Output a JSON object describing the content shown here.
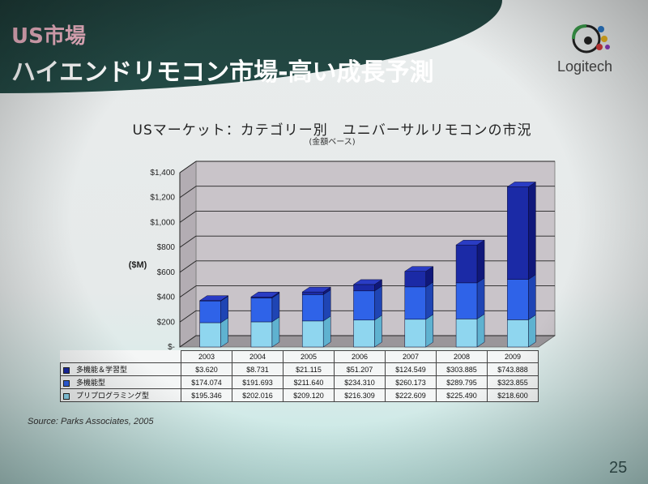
{
  "slide": {
    "title_line1": "US市場",
    "title_line2": "ハイエンドリモコン市場-高い成長予測",
    "logo_text": "Logitech",
    "source": "Source: Parks Associates, 2005",
    "page_number": "25"
  },
  "colors": {
    "header": "#234a45",
    "series_learning": "#1b2aa6",
    "series_multi": "#2f63e8",
    "series_preprogrammed": "#8fd6ef"
  },
  "chart_data": {
    "type": "bar",
    "stacked": true,
    "title": "USマーケット：カテゴリー別　ユニバーサルリモコンの市況",
    "subtitle": "(金額ベース)",
    "ylabel": "($M)",
    "xlabel": "",
    "categories": [
      "2003",
      "2004",
      "2005",
      "2006",
      "2007",
      "2008",
      "2009"
    ],
    "ylim": [
      0,
      1400
    ],
    "yticks": [
      0,
      200,
      400,
      600,
      800,
      1000,
      1200,
      1400
    ],
    "ytick_labels": [
      "$-",
      "$200",
      "$400",
      "$600",
      "$800",
      "$1,000",
      "$1,200",
      "$1,400"
    ],
    "grid": true,
    "series": [
      {
        "name": "多機能＆学習型",
        "values": [
          3.62,
          8.731,
          21.115,
          51.207,
          124.549,
          303.885,
          743.888
        ],
        "labels": [
          "$3.620",
          "$8.731",
          "$21.115",
          "$51.207",
          "$124.549",
          "$303.885",
          "$743.888"
        ]
      },
      {
        "name": "多機能型",
        "values": [
          174.074,
          191.693,
          211.64,
          234.31,
          260.173,
          289.795,
          323.855
        ],
        "labels": [
          "$174.074",
          "$191.693",
          "$211.640",
          "$234.310",
          "$260.173",
          "$289.795",
          "$323.855"
        ]
      },
      {
        "name": "プリプログラミング型",
        "values": [
          195.346,
          202.016,
          209.12,
          216.309,
          222.609,
          225.49,
          218.6
        ],
        "labels": [
          "$195.346",
          "$202.016",
          "$209.120",
          "$216.309",
          "$222.609",
          "$225.490",
          "$218.600"
        ]
      }
    ]
  }
}
